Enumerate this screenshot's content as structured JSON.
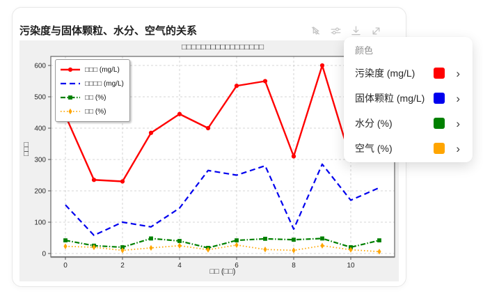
{
  "card": {
    "title": "污染度与固体颗粒、水分、空气的关系"
  },
  "toolbar": {
    "icons": [
      {
        "name": "pointer-off-icon"
      },
      {
        "name": "sliders-icon"
      },
      {
        "name": "download-icon"
      },
      {
        "name": "expand-icon"
      }
    ],
    "icon_color": "#c4c4c4"
  },
  "color_popup": {
    "header": "颜色",
    "chevron": "›",
    "items": [
      {
        "label": "污染度 (mg/L)",
        "color": "#ff0000"
      },
      {
        "label": "固体颗粒 (mg/L)",
        "color": "#0000ee"
      },
      {
        "label": "水分 (%)",
        "color": "#008000"
      },
      {
        "label": "空气 (%)",
        "color": "#ffa500"
      }
    ]
  },
  "chart_data": {
    "type": "line",
    "title": "□□□□□□□□□□□□□□□□□",
    "xlabel": "□□ (□□)",
    "ylabel": "□□□",
    "x": [
      0,
      1,
      2,
      3,
      4,
      5,
      6,
      7,
      8,
      9,
      10,
      11
    ],
    "xticks": [
      0,
      2,
      4,
      6,
      8,
      10
    ],
    "yticks": [
      0,
      100,
      200,
      300,
      400,
      500,
      600
    ],
    "ylim": [
      0,
      630
    ],
    "grid": "dashed",
    "legend_position": "upper-left",
    "series": [
      {
        "name": "□□□ (mg/L)",
        "color": "#ff0000",
        "style": "solid_circle",
        "values": [
          440,
          235,
          230,
          385,
          445,
          400,
          535,
          550,
          310,
          600,
          300,
          430
        ]
      },
      {
        "name": "□□□□ (mg/L)",
        "color": "#0000ee",
        "style": "dashed",
        "values": [
          155,
          58,
          100,
          85,
          145,
          265,
          250,
          280,
          78,
          285,
          170,
          210
        ]
      },
      {
        "name": "□□ (%)",
        "color": "#008000",
        "style": "dashdot_square",
        "values": [
          42,
          25,
          20,
          48,
          40,
          18,
          42,
          47,
          44,
          48,
          20,
          42
        ]
      },
      {
        "name": "□□ (%)",
        "color": "#ffa500",
        "style": "dotted_diamond",
        "values": [
          23,
          20,
          10,
          18,
          25,
          12,
          27,
          13,
          10,
          25,
          12,
          6
        ]
      }
    ]
  }
}
